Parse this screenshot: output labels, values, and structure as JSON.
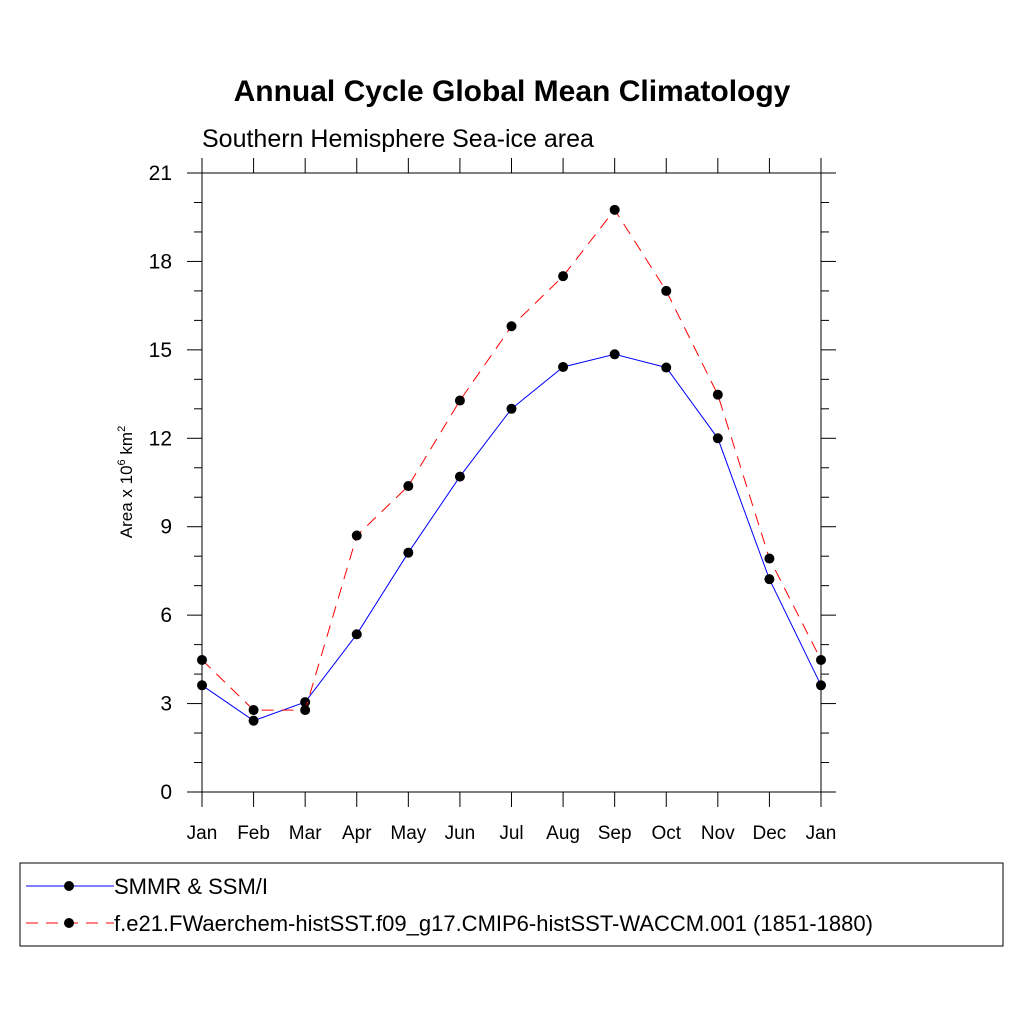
{
  "chart_data": {
    "type": "line",
    "title": "Annual Cycle Global Mean Climatology",
    "subtitle": "Southern Hemisphere Sea-ice area",
    "ylabel": "Area x 10",
    "ylabel_exponent": "6",
    "ylabel_unit": "km",
    "ylabel_unit_exponent": "2",
    "xlabel": "",
    "categories": [
      "Jan",
      "Feb",
      "Mar",
      "Apr",
      "May",
      "Jun",
      "Jul",
      "Aug",
      "Sep",
      "Oct",
      "Nov",
      "Dec",
      "Jan"
    ],
    "ylim": [
      0,
      21
    ],
    "yticks": [
      0,
      3,
      6,
      9,
      12,
      15,
      18,
      21
    ],
    "grid": false,
    "legend_placement": "bottom",
    "series": [
      {
        "name": "SMMR & SSM/I",
        "color": "#0000ff",
        "dash": "solid",
        "marker": "filled-circle",
        "values": [
          3.62,
          2.42,
          3.05,
          5.35,
          8.12,
          10.7,
          13.0,
          14.42,
          14.85,
          14.4,
          12.0,
          7.22,
          3.62
        ]
      },
      {
        "name": "f.e21.FWaerchem-histSST.f09_g17.CMIP6-histSST-WACCM.001 (1851-1880)",
        "color": "#ff0000",
        "dash": "dashed",
        "marker": "filled-circle",
        "values": [
          4.48,
          2.78,
          2.78,
          8.7,
          10.38,
          13.28,
          15.8,
          17.5,
          19.75,
          17.0,
          13.48,
          7.92,
          4.48
        ]
      }
    ]
  }
}
